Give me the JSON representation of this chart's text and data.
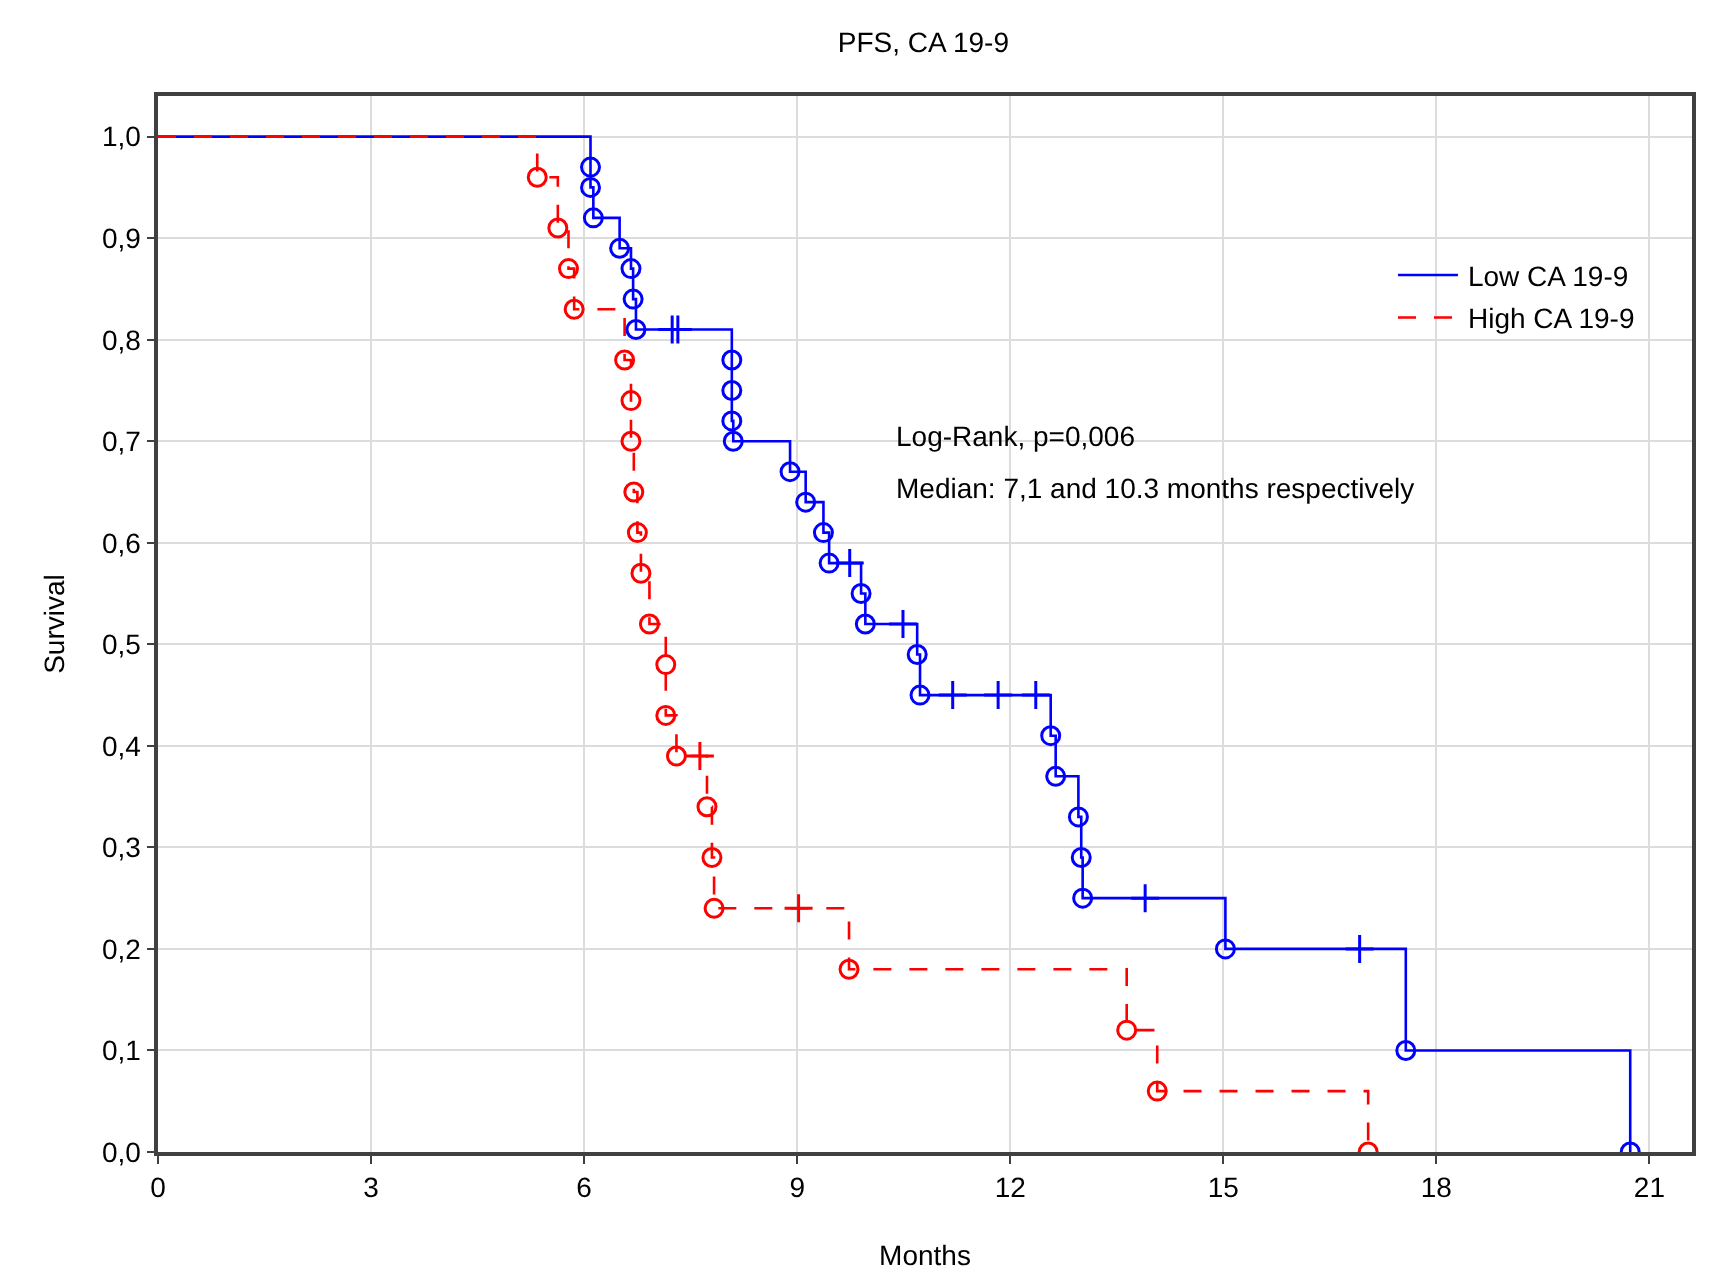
{
  "chart_data": {
    "type": "step",
    "title": "PFS, CA 19-9",
    "xlabel": "Months",
    "ylabel": "Survival",
    "xlim": [
      0,
      21.6
    ],
    "xticks": [
      0,
      3,
      6,
      9,
      12,
      15,
      18,
      21
    ],
    "ylim": [
      0,
      1.04
    ],
    "yticks": [
      {
        "value": 0,
        "label": "0,0"
      },
      {
        "value": 0.1,
        "label": "0,1"
      },
      {
        "value": 0.2,
        "label": "0,2"
      },
      {
        "value": 0.3,
        "label": "0,3"
      },
      {
        "value": 0.4,
        "label": "0,4"
      },
      {
        "value": 0.5,
        "label": "0,5"
      },
      {
        "value": 0.6,
        "label": "0,6"
      },
      {
        "value": 0.7,
        "label": "0,7"
      },
      {
        "value": 0.8,
        "label": "0,8"
      },
      {
        "value": 0.9,
        "label": "0,9"
      },
      {
        "value": 1.0,
        "label": "1,0"
      }
    ],
    "grid": true,
    "legend": "top right",
    "annotations": [
      "Log-Rank, p=0,006",
      "Median: 7,1 and 10.3 months respectively"
    ],
    "series": [
      {
        "name": "Low CA 19-9",
        "color": "#0000ff",
        "line_style": "solid",
        "marker": "none",
        "x": [
          0,
          6.09,
          6.09,
          6.13,
          6.5,
          6.66,
          6.69,
          6.73,
          8.08,
          8.08,
          8.08,
          8.1,
          8.9,
          9.12,
          9.37,
          9.45,
          9.9,
          9.96,
          10.69,
          10.73,
          12.57,
          12.64,
          12.96,
          13.0,
          13.02,
          15.03,
          17.57,
          20.73
        ],
        "values": [
          1.0,
          0.97,
          0.95,
          0.92,
          0.89,
          0.87,
          0.84,
          0.81,
          0.78,
          0.75,
          0.72,
          0.7,
          0.67,
          0.64,
          0.61,
          0.58,
          0.55,
          0.52,
          0.49,
          0.45,
          0.41,
          0.37,
          0.33,
          0.29,
          0.25,
          0.2,
          0.1,
          0.0
        ]
      },
      {
        "name": "High CA 19-9",
        "color": "#ff0000",
        "line_style": "dashed",
        "marker": "none",
        "x": [
          0,
          5.34,
          5.63,
          5.78,
          5.86,
          6.57,
          6.66,
          6.66,
          6.7,
          6.75,
          6.8,
          6.92,
          7.15,
          7.15,
          7.3,
          7.73,
          7.8,
          7.83,
          9.73,
          13.64,
          14.07,
          17.04
        ],
        "values": [
          1.0,
          0.96,
          0.91,
          0.87,
          0.83,
          0.78,
          0.74,
          0.7,
          0.65,
          0.61,
          0.57,
          0.52,
          0.48,
          0.43,
          0.39,
          0.34,
          0.29,
          0.24,
          0.18,
          0.12,
          0.06,
          0.0
        ]
      },
      {
        "type": "scatter",
        "color": "#0000ff",
        "marker": "circle",
        "x": [
          6.09,
          6.09,
          6.13,
          6.5,
          6.66,
          6.69,
          6.73,
          8.08,
          8.08,
          8.08,
          8.1,
          8.9,
          9.12,
          9.37,
          9.45,
          9.9,
          9.96,
          10.69,
          10.73,
          12.57,
          12.64,
          12.96,
          13.0,
          13.02,
          15.03,
          17.57,
          20.73
        ],
        "values": [
          0.97,
          0.95,
          0.92,
          0.89,
          0.87,
          0.84,
          0.81,
          0.78,
          0.75,
          0.72,
          0.7,
          0.67,
          0.64,
          0.61,
          0.58,
          0.55,
          0.52,
          0.49,
          0.45,
          0.41,
          0.37,
          0.33,
          0.29,
          0.25,
          0.2,
          0.1,
          0.0
        ]
      },
      {
        "type": "scatter",
        "color": "#ff0000",
        "marker": "circle",
        "x": [
          5.34,
          5.63,
          5.78,
          5.86,
          6.57,
          6.66,
          6.66,
          6.7,
          6.75,
          6.8,
          6.92,
          7.15,
          7.15,
          7.3,
          7.73,
          7.8,
          7.83,
          9.73,
          13.64,
          14.07,
          17.04
        ],
        "values": [
          0.96,
          0.91,
          0.87,
          0.83,
          0.78,
          0.74,
          0.7,
          0.65,
          0.61,
          0.57,
          0.52,
          0.48,
          0.43,
          0.39,
          0.34,
          0.29,
          0.24,
          0.18,
          0.12,
          0.06,
          0.0
        ]
      },
      {
        "type": "scatter",
        "color": "#0000ff",
        "marker": "cross",
        "x": [
          7.24,
          7.32,
          9.74,
          10.49,
          11.19,
          11.83,
          12.36,
          13.9,
          16.92
        ],
        "values": [
          0.81,
          0.81,
          0.58,
          0.52,
          0.45,
          0.45,
          0.45,
          0.25,
          0.2
        ]
      },
      {
        "type": "scatter",
        "color": "#ff0000",
        "marker": "cross",
        "x": [
          7.63,
          9.02
        ],
        "values": [
          0.39,
          0.24
        ]
      }
    ]
  }
}
